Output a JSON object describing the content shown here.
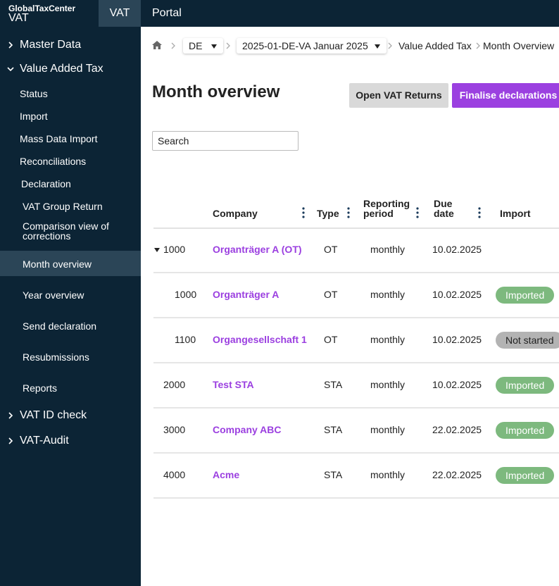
{
  "header": {
    "brand": "GlobalTaxCenter",
    "product": "VAT",
    "tabs": [
      "VAT",
      "Portal"
    ]
  },
  "sidebar": {
    "items": [
      {
        "label": "Master Data"
      },
      {
        "label": "Value Added Tax",
        "children": [
          "Status",
          "Import",
          "Mass Data Import",
          "Reconciliations",
          "Declaration",
          "VAT Group Return",
          "Comparison view of corrections",
          "Month overview",
          "Year overview",
          "Send declaration",
          "Resubmissions",
          "Reports"
        ]
      },
      {
        "label": "VAT ID check"
      },
      {
        "label": "VAT-Audit"
      }
    ]
  },
  "breadcrumb": {
    "country": "DE",
    "period": "2025-01-DE-VA Januar 2025",
    "path": [
      "Value Added Tax",
      "Month Overview"
    ]
  },
  "page": {
    "title": "Month overview",
    "buttons": [
      "Open VAT Returns",
      "Finalise declarations"
    ],
    "search_placeholder": "Search"
  },
  "table": {
    "columns": [
      "Company",
      "Type",
      "Reporting period",
      "Due date",
      "Import"
    ],
    "rows": [
      {
        "id": "1000",
        "company": "Organträger A (OT)",
        "type": "OT",
        "period": "monthly",
        "due": "10.02.2025",
        "import": null,
        "children": [
          {
            "id": "1000",
            "company": "Organträger A",
            "type": "OT",
            "period": "monthly",
            "due": "10.02.2025",
            "import": {
              "label": "Imported",
              "color": "#7db97e"
            }
          },
          {
            "id": "1100",
            "company": "Organgesellschaft 1",
            "type": "OT",
            "period": "monthly",
            "due": "10.02.2025",
            "import": {
              "label": "Not started",
              "color": "#b3b3b3"
            }
          }
        ]
      },
      {
        "id": "2000",
        "company": "Test STA",
        "type": "STA",
        "period": "monthly",
        "due": "10.02.2025",
        "import": {
          "label": "Imported",
          "color": "#7db97e"
        }
      },
      {
        "id": "3000",
        "company": "Company ABC",
        "type": "STA",
        "period": "monthly",
        "due": "22.02.2025",
        "import": {
          "label": "Imported",
          "color": "#7db97e"
        }
      },
      {
        "id": "4000",
        "company": "Acme",
        "type": "STA",
        "period": "monthly",
        "due": "22.02.2025",
        "import": {
          "label": "Imported",
          "color": "#7db97e"
        }
      }
    ]
  }
}
